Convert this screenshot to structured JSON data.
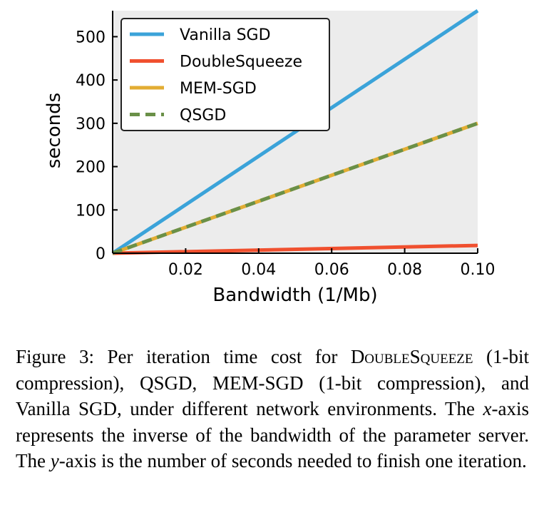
{
  "chart_data": {
    "type": "line",
    "xlabel": "Bandwidth (1/Mb)",
    "ylabel": "seconds",
    "xlim": [
      0,
      0.1
    ],
    "ylim": [
      0,
      560
    ],
    "xticks": [
      0.02,
      0.04,
      0.06,
      0.08,
      0.1
    ],
    "xtick_labels": [
      "0.02",
      "0.04",
      "0.06",
      "0.08",
      "0.10"
    ],
    "yticks": [
      0,
      100,
      200,
      300,
      400,
      500
    ],
    "ytick_labels": [
      "0",
      "100",
      "200",
      "300",
      "400",
      "500"
    ],
    "grid": false,
    "legend_position": "top-left",
    "background": "#ececec",
    "series": [
      {
        "name": "Vanilla SGD",
        "color": "#3ba3d9",
        "dash": "solid",
        "x": [
          0,
          0.1
        ],
        "y": [
          0,
          560
        ]
      },
      {
        "name": "DoubleSqueeze",
        "color": "#f0502f",
        "dash": "solid",
        "x": [
          0,
          0.1
        ],
        "y": [
          0,
          18
        ]
      },
      {
        "name": "MEM-SGD",
        "color": "#e3ad33",
        "dash": "solid",
        "x": [
          0,
          0.1
        ],
        "y": [
          0,
          300
        ]
      },
      {
        "name": "QSGD",
        "color": "#6a9048",
        "dash": "dashed",
        "x": [
          0,
          0.1
        ],
        "y": [
          0,
          300
        ]
      }
    ]
  },
  "caption": {
    "figure_label": "Figure 3:",
    "text_1": "Per iteration time cost for",
    "method_doublesqueeze": "DoubleSqueeze",
    "text_2": "(1-bit compression), QSGD, MEM-SGD (1-bit compression), and Vanilla SGD, under different network environments. The",
    "x_var": "x",
    "text_3": "-axis represents the inverse of the bandwidth of the parameter server.  The",
    "y_var": "y",
    "text_4": "-axis is the number of seconds needed to finish one iteration."
  }
}
